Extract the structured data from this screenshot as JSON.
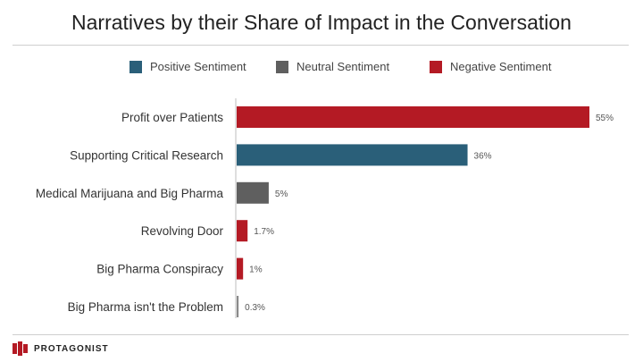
{
  "title": "Narratives by their Share of Impact in the Conversation",
  "legend": [
    {
      "label": "Positive Sentiment",
      "color": "#2a5f79"
    },
    {
      "label": "Neutral Sentiment",
      "color": "#5f5f5f"
    },
    {
      "label": "Negative Sentiment",
      "color": "#b41a24"
    }
  ],
  "chart_data": {
    "type": "bar",
    "orientation": "horizontal",
    "title": "Narratives by their Share of Impact in the Conversation",
    "categories": [
      "Profit over Patients",
      "Supporting Critical Research",
      "Medical Marijuana and Big Pharma",
      "Revolving Door",
      "Big Pharma Conspiracy",
      "Big Pharma isn't the Problem"
    ],
    "values": [
      55,
      36,
      5,
      1.7,
      1,
      0.3
    ],
    "value_labels": [
      "55%",
      "36%",
      "5%",
      "1.7%",
      "1%",
      "0.3%"
    ],
    "sentiment": [
      "Negative Sentiment",
      "Positive Sentiment",
      "Neutral Sentiment",
      "Negative Sentiment",
      "Negative Sentiment",
      "Neutral Sentiment"
    ],
    "colors": [
      "#b41a24",
      "#2a5f79",
      "#5f5f5f",
      "#b41a24",
      "#b41a24",
      "#8a8a8a"
    ],
    "xlim": [
      0,
      55
    ],
    "grid": false,
    "legend_position": "top"
  },
  "footer": {
    "logo_text": "PROTAGONIST",
    "logo_color": "#b41a24"
  }
}
